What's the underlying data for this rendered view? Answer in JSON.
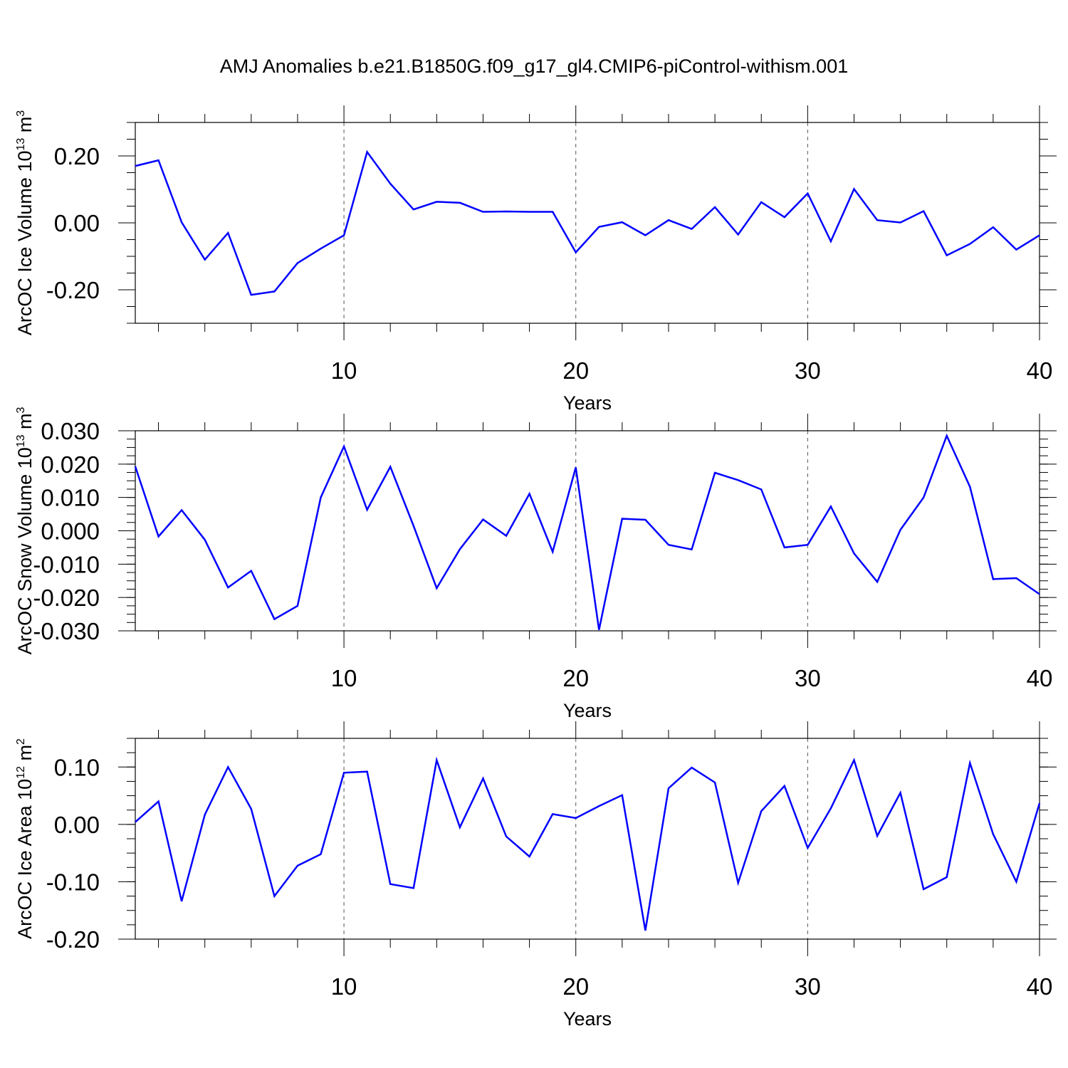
{
  "chart_data": [
    {
      "type": "line",
      "title": "AMJ Anomalies b.e21.B1850G.f09_g17_gl4.CMIP6-piControl-withism.001",
      "xlabel": "Years",
      "ylabel": "ArcOC Ice Volume 10",
      "ylabel_exp": "13",
      "ylabel_unit": " m",
      "ylabel_unit_exp": "3",
      "xlim": [
        1,
        40
      ],
      "ylim": [
        -0.3,
        0.3
      ],
      "xticks": [
        10,
        20,
        30,
        40
      ],
      "xtick_labels": [
        "10",
        "20",
        "30",
        "40"
      ],
      "yticks": [
        -0.2,
        0.0,
        0.2
      ],
      "ytick_labels": [
        "-0.20",
        "0.00",
        "0.20"
      ],
      "grid_x": [
        10,
        20,
        30
      ],
      "color": "#0000ff",
      "x": [
        1,
        2,
        3,
        4,
        5,
        6,
        7,
        8,
        9,
        10,
        11,
        12,
        13,
        14,
        15,
        16,
        17,
        18,
        19,
        20,
        21,
        22,
        23,
        24,
        25,
        26,
        27,
        28,
        29,
        30,
        31,
        32,
        33,
        34,
        35,
        36,
        37,
        38,
        39,
        40
      ],
      "series": [
        {
          "values": [
            0.17,
            0.187,
            0.002,
            -0.11,
            -0.03,
            -0.215,
            -0.205,
            -0.12,
            -0.077,
            -0.037,
            0.212,
            0.117,
            0.04,
            0.063,
            0.06,
            0.033,
            0.034,
            0.033,
            0.033,
            -0.088,
            -0.012,
            0.002,
            -0.037,
            0.008,
            -0.018,
            0.047,
            -0.035,
            0.062,
            0.017,
            0.088,
            -0.055,
            0.101,
            0.008,
            0.001,
            0.035,
            -0.097,
            -0.063,
            -0.013,
            -0.08,
            -0.037
          ]
        }
      ]
    },
    {
      "type": "line",
      "xlabel": "Years",
      "ylabel": "ArcOC Snow Volume 10",
      "ylabel_exp": "13",
      "ylabel_unit": " m",
      "ylabel_unit_exp": "3",
      "xlim": [
        1,
        40
      ],
      "ylim": [
        -0.03,
        0.03
      ],
      "xticks": [
        10,
        20,
        30,
        40
      ],
      "xtick_labels": [
        "10",
        "20",
        "30",
        "40"
      ],
      "yticks": [
        -0.03,
        -0.02,
        -0.01,
        0.0,
        0.01,
        0.02,
        0.03
      ],
      "ytick_labels": [
        "-0.030",
        "-0.020",
        "-0.010",
        "0.000",
        "0.010",
        "0.020",
        "0.030"
      ],
      "grid_x": [
        10,
        20,
        30
      ],
      "color": "#0000ff",
      "x": [
        1,
        2,
        3,
        4,
        5,
        6,
        7,
        8,
        9,
        10,
        11,
        12,
        13,
        14,
        15,
        16,
        17,
        18,
        19,
        20,
        21,
        22,
        23,
        24,
        25,
        26,
        27,
        28,
        29,
        30,
        31,
        32,
        33,
        34,
        35,
        36,
        37,
        38,
        39,
        40
      ],
      "series": [
        {
          "values": [
            0.0193,
            -0.0017,
            0.0062,
            -0.0027,
            -0.017,
            -0.012,
            -0.0265,
            -0.0225,
            0.01,
            0.0253,
            0.0063,
            0.0192,
            0.0015,
            -0.0172,
            -0.0055,
            0.0034,
            -0.0015,
            0.0111,
            -0.0063,
            0.019,
            -0.0297,
            0.0036,
            0.0033,
            -0.0042,
            -0.0056,
            0.0174,
            0.0152,
            0.0124,
            -0.005,
            -0.0042,
            0.0073,
            -0.0068,
            -0.0153,
            0.0003,
            0.01,
            0.0285,
            0.0132,
            -0.0145,
            -0.0142,
            -0.019
          ]
        }
      ]
    },
    {
      "type": "line",
      "xlabel": "Years",
      "ylabel": "ArcOC Ice Area 10",
      "ylabel_exp": "12",
      "ylabel_unit": " m",
      "ylabel_unit_exp": "2",
      "xlim": [
        1,
        40
      ],
      "ylim": [
        -0.2,
        0.15
      ],
      "xticks": [
        10,
        20,
        30,
        40
      ],
      "xtick_labels": [
        "10",
        "20",
        "30",
        "40"
      ],
      "yticks": [
        -0.2,
        -0.1,
        0.0,
        0.1
      ],
      "ytick_labels": [
        "-0.20",
        "-0.10",
        "0.00",
        "0.10"
      ],
      "grid_x": [
        10,
        20,
        30
      ],
      "color": "#0000ff",
      "x": [
        1,
        2,
        3,
        4,
        5,
        6,
        7,
        8,
        9,
        10,
        11,
        12,
        13,
        14,
        15,
        16,
        17,
        18,
        19,
        20,
        21,
        22,
        23,
        24,
        25,
        26,
        27,
        28,
        29,
        30,
        31,
        32,
        33,
        34,
        35,
        36,
        37,
        38,
        39,
        40
      ],
      "series": [
        {
          "values": [
            0.004,
            0.04,
            -0.134,
            0.017,
            0.1,
            0.027,
            -0.125,
            -0.072,
            -0.052,
            0.09,
            0.092,
            -0.104,
            -0.111,
            0.112,
            -0.005,
            0.08,
            -0.021,
            -0.056,
            0.018,
            0.011,
            0.032,
            0.051,
            -0.185,
            0.063,
            0.099,
            0.073,
            -0.102,
            0.023,
            0.067,
            -0.041,
            0.028,
            0.112,
            -0.02,
            0.055,
            -0.113,
            -0.092,
            0.107,
            -0.017,
            -0.1,
            0.037
          ]
        }
      ]
    }
  ]
}
